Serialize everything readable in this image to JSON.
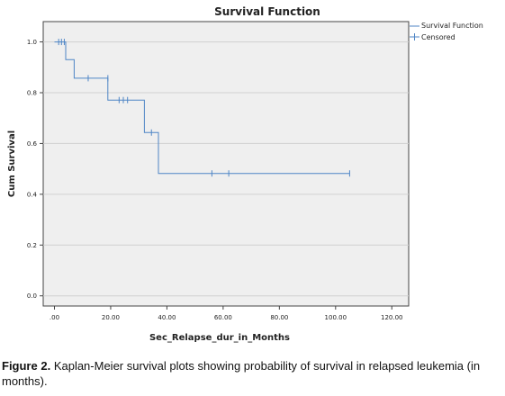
{
  "chart_data": {
    "type": "line",
    "title": "Survival Function",
    "xlabel": "Sec_Relapse_dur_in_Months",
    "ylabel": "Cum Survival",
    "xlim": [
      -4,
      126
    ],
    "ylim": [
      -0.04,
      1.08
    ],
    "x_ticks": [
      0,
      20,
      40,
      60,
      80,
      100,
      120
    ],
    "x_tick_labels": [
      ".00",
      "20.00",
      "40.00",
      "60.00",
      "80.00",
      "100.00",
      "120.00"
    ],
    "y_ticks": [
      0,
      0.2,
      0.4,
      0.6,
      0.8,
      1.0
    ],
    "y_tick_labels": [
      "0.0",
      "0.2",
      "0.4",
      "0.6",
      "0.8",
      "1.0"
    ],
    "grid": "horizontal",
    "legend_position": "top-right",
    "series": [
      {
        "name": "Survival Function",
        "style": "step",
        "color": "#4f86c6",
        "x": [
          0,
          4,
          4,
          7,
          7,
          19,
          19,
          22,
          22,
          32,
          32,
          37,
          37,
          105
        ],
        "y": [
          1.0,
          1.0,
          0.93,
          0.93,
          0.857,
          0.857,
          0.771,
          0.771,
          0.771,
          0.771,
          0.643,
          0.643,
          0.482,
          0.482
        ]
      },
      {
        "name": "Censored",
        "style": "marker",
        "color": "#4f86c6",
        "x": [
          1.5,
          2.5,
          3.5,
          12,
          19,
          23,
          24.5,
          26,
          34.5,
          56,
          62,
          105
        ],
        "y": [
          1.0,
          1.0,
          1.0,
          0.857,
          0.857,
          0.771,
          0.771,
          0.771,
          0.643,
          0.482,
          0.482,
          0.482
        ]
      }
    ]
  },
  "caption": {
    "label": "Figure 2.",
    "text": "Kaplan-Meier survival plots showing probability of survival in relapsed leukemia (in months)."
  },
  "colors": {
    "plot_background": "#efefef",
    "line": "#4f86c6",
    "grid": "#d0d0d0"
  }
}
